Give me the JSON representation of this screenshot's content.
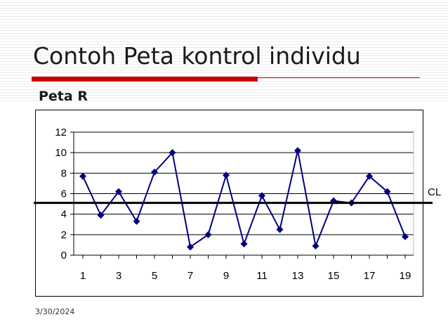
{
  "slide": {
    "title": "Contoh Peta kontrol individu",
    "chart_heading": "Peta R",
    "footer_date": "3/30/2024",
    "accent_color": "#cc0000"
  },
  "chart_data": {
    "type": "line",
    "title": "Peta R",
    "xlabel": "",
    "ylabel": "",
    "x": [
      1,
      2,
      3,
      4,
      5,
      6,
      7,
      8,
      9,
      10,
      11,
      12,
      13,
      14,
      15,
      16,
      17,
      18,
      19
    ],
    "x_tick_labels": [
      "1",
      "3",
      "5",
      "7",
      "9",
      "11",
      "13",
      "15",
      "17",
      "19"
    ],
    "y_tick_labels": [
      "0",
      "2",
      "4",
      "6",
      "8",
      "10",
      "12"
    ],
    "ylim": [
      0,
      12
    ],
    "xlim": [
      1,
      19
    ],
    "grid": "horizontal",
    "series": [
      {
        "values": [
          7.7,
          3.9,
          6.2,
          3.3,
          8.1,
          10,
          0.8,
          2,
          7.8,
          1.1,
          5.8,
          2.5,
          10.2,
          0.9,
          5.3,
          5.1,
          7.7,
          6.2,
          1.8
        ],
        "color": "#000080",
        "marker": "diamond"
      }
    ],
    "reference_line": {
      "label": "CL",
      "value": 5.1,
      "color": "#000000"
    }
  }
}
